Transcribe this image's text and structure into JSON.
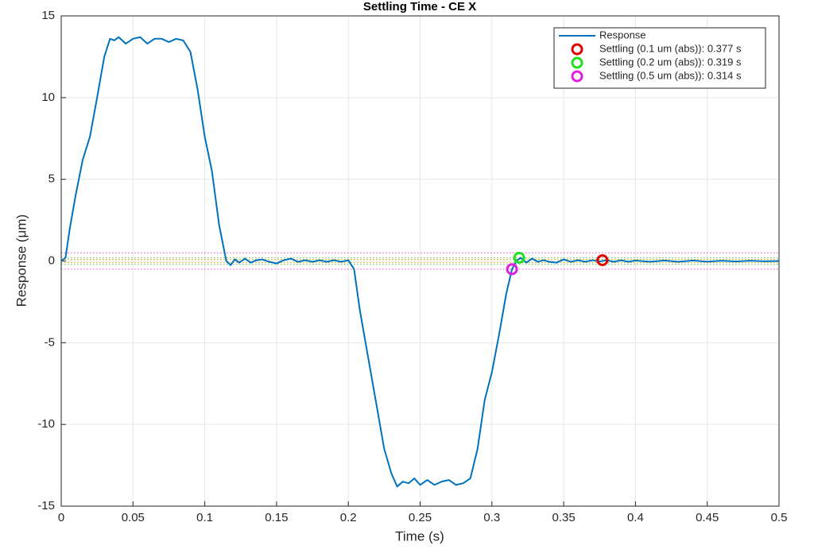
{
  "chart_data": {
    "type": "line",
    "title": "Settling Time - CE X",
    "x_label": "Time (s)",
    "y_label": "Response  (μm)",
    "xlim": [
      0,
      0.5
    ],
    "xticks": [
      0,
      0.05,
      0.1,
      0.15,
      0.2,
      0.25,
      0.3,
      0.35,
      0.4,
      0.45,
      0.5
    ],
    "ylim": [
      -15,
      15
    ],
    "yticks": [
      -15,
      -10,
      -5,
      0,
      5,
      10,
      15
    ],
    "grid": true,
    "legend": "top-right",
    "thresholds": [
      {
        "values": [
          0.5,
          -0.5
        ],
        "color": "#e040e0"
      },
      {
        "values": [
          0.2,
          -0.2
        ],
        "color": "#60c060"
      },
      {
        "values": [
          0.1,
          -0.1
        ],
        "color": "#d0b000"
      }
    ],
    "series": [
      {
        "name": "Response",
        "color": "#0072bd",
        "marker": "none",
        "x": [
          0,
          0.003,
          0.006,
          0.01,
          0.015,
          0.02,
          0.025,
          0.03,
          0.034,
          0.037,
          0.04,
          0.045,
          0.05,
          0.055,
          0.06,
          0.065,
          0.07,
          0.075,
          0.08,
          0.085,
          0.09,
          0.095,
          0.1,
          0.105,
          0.11,
          0.115,
          0.118,
          0.121,
          0.124,
          0.128,
          0.132,
          0.136,
          0.14,
          0.145,
          0.15,
          0.155,
          0.16,
          0.165,
          0.17,
          0.175,
          0.18,
          0.185,
          0.19,
          0.195,
          0.2,
          0.204,
          0.208,
          0.212,
          0.216,
          0.22,
          0.225,
          0.23,
          0.234,
          0.238,
          0.242,
          0.246,
          0.25,
          0.255,
          0.26,
          0.265,
          0.27,
          0.275,
          0.28,
          0.285,
          0.29,
          0.295,
          0.3,
          0.305,
          0.31,
          0.314,
          0.317,
          0.32,
          0.324,
          0.328,
          0.332,
          0.336,
          0.34,
          0.345,
          0.35,
          0.355,
          0.36,
          0.365,
          0.37,
          0.375,
          0.38,
          0.385,
          0.39,
          0.395,
          0.4,
          0.41,
          0.42,
          0.43,
          0.44,
          0.45,
          0.46,
          0.47,
          0.48,
          0.49,
          0.5
        ],
        "values": [
          0,
          0.2,
          2,
          4,
          6.2,
          7.6,
          10,
          12.5,
          13.6,
          13.5,
          13.7,
          13.3,
          13.6,
          13.7,
          13.3,
          13.6,
          13.6,
          13.4,
          13.6,
          13.5,
          12.8,
          10.5,
          7.6,
          5.5,
          2.2,
          0,
          -0.25,
          0.1,
          -0.1,
          0.15,
          -0.1,
          0.05,
          0.1,
          -0.05,
          -0.15,
          0.05,
          0.15,
          -0.05,
          0.05,
          -0.05,
          0.05,
          -0.05,
          0.05,
          -0.05,
          0.05,
          -0.5,
          -3,
          -5,
          -7,
          -9,
          -11.5,
          -13,
          -13.8,
          -13.5,
          -13.6,
          -13.3,
          -13.7,
          -13.4,
          -13.7,
          -13.5,
          -13.4,
          -13.7,
          -13.6,
          -13.3,
          -11.5,
          -8.5,
          -6.8,
          -4.5,
          -2,
          -0.5,
          0,
          0.2,
          -0.1,
          0.15,
          -0.05,
          0.05,
          -0.05,
          -0.1,
          0.1,
          -0.05,
          0.05,
          -0.05,
          0.05,
          -0.03,
          0.05,
          -0.05,
          0.05,
          -0.05,
          0.03,
          -0.05,
          0.03,
          -0.05,
          0.03,
          -0.04,
          0.02,
          -0.03,
          0.02,
          -0.02,
          0
        ]
      },
      {
        "name": "Settling (0.1 um (abs)): 0.377 s",
        "color": "#e00000",
        "marker": "circle",
        "x": [
          0.377
        ],
        "values": [
          0.05
        ]
      },
      {
        "name": "Settling (0.2 um (abs)): 0.319 s",
        "color": "#20e020",
        "marker": "circle",
        "x": [
          0.319
        ],
        "values": [
          0.2
        ]
      },
      {
        "name": "Settling (0.5 um (abs)): 0.314 s",
        "color": "#e020e0",
        "marker": "circle",
        "x": [
          0.314
        ],
        "values": [
          -0.5
        ]
      }
    ]
  }
}
